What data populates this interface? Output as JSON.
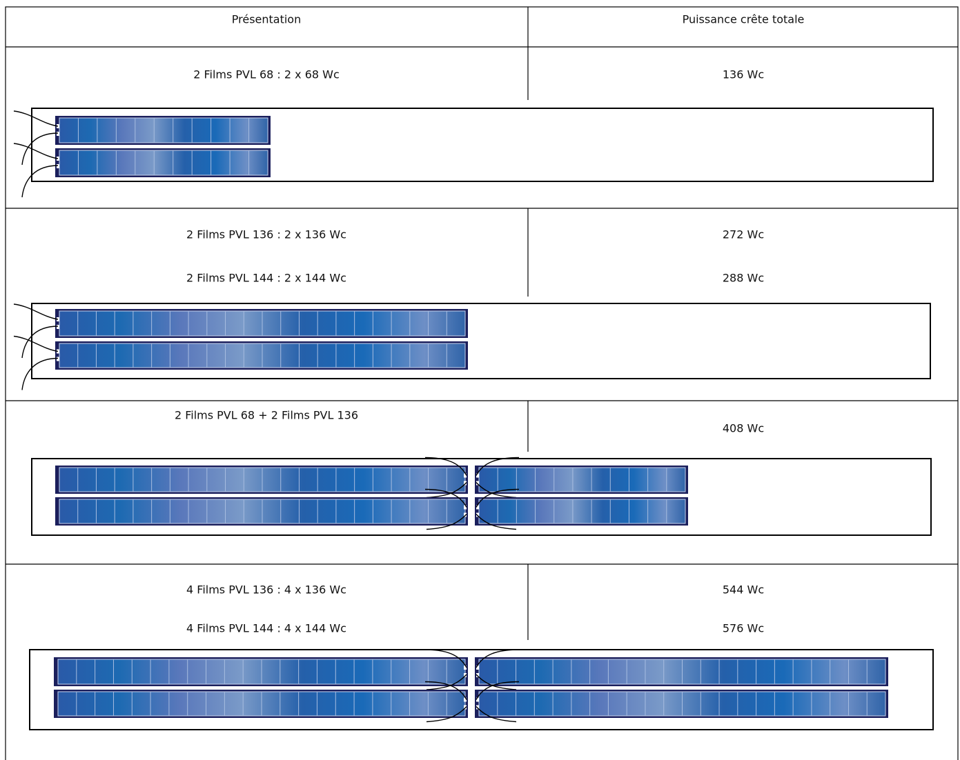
{
  "table": {
    "header": [
      "Présentation",
      "Puissance crête totale"
    ],
    "rows": [
      {
        "presentation": [
          "2 Films PVL 68 : 2 x 68 Wc"
        ],
        "power": [
          "136 Wc"
        ]
      },
      {
        "presentation": [
          "2 Films PVL 136 : 2 x 136 Wc",
          "2 Films PVL 144 : 2 x 144 Wc"
        ],
        "power": [
          "272 Wc",
          "288 Wc"
        ]
      },
      {
        "presentation": [
          "2 Films PVL 68 + 2 Films PVL 136"
        ],
        "power": [
          "408 Wc"
        ]
      },
      {
        "presentation": [
          "4 Films PVL 136 : 4 x 136 Wc",
          "4 Films PVL 144 : 4 x 144 Wc"
        ],
        "power": [
          "544 Wc",
          "576 Wc"
        ]
      }
    ]
  }
}
